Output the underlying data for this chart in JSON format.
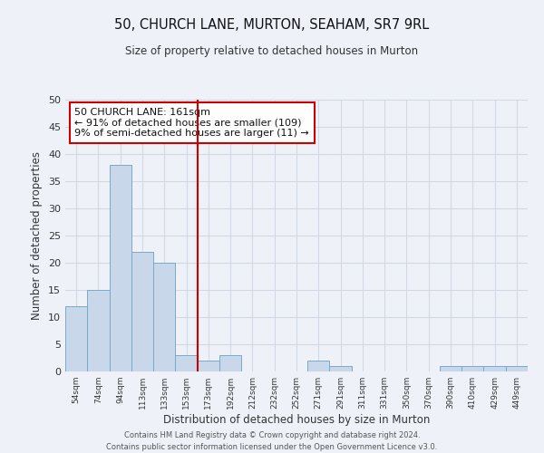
{
  "title": "50, CHURCH LANE, MURTON, SEAHAM, SR7 9RL",
  "subtitle": "Size of property relative to detached houses in Murton",
  "xlabel": "Distribution of detached houses by size in Murton",
  "ylabel": "Number of detached properties",
  "bar_color": "#c8d8ea",
  "bar_edge_color": "#7aaac8",
  "grid_color": "#d0d8e8",
  "background_color": "#eef2f8",
  "vline_color": "#cc0000",
  "vline_x": 5.5,
  "annotation_text": "50 CHURCH LANE: 161sqm\n← 91% of detached houses are smaller (109)\n9% of semi-detached houses are larger (11) →",
  "annotation_box_color": "#ffffff",
  "annotation_edge_color": "#cc0000",
  "ylim": [
    0,
    50
  ],
  "yticks": [
    0,
    5,
    10,
    15,
    20,
    25,
    30,
    35,
    40,
    45,
    50
  ],
  "categories": [
    "54sqm",
    "74sqm",
    "94sqm",
    "113sqm",
    "133sqm",
    "153sqm",
    "173sqm",
    "192sqm",
    "212sqm",
    "232sqm",
    "252sqm",
    "271sqm",
    "291sqm",
    "311sqm",
    "331sqm",
    "350sqm",
    "370sqm",
    "390sqm",
    "410sqm",
    "429sqm",
    "449sqm"
  ],
  "values": [
    12,
    15,
    38,
    22,
    20,
    3,
    2,
    3,
    0,
    0,
    0,
    2,
    1,
    0,
    0,
    0,
    0,
    1,
    1,
    1,
    1
  ],
  "footer_line1": "Contains HM Land Registry data © Crown copyright and database right 2024.",
  "footer_line2": "Contains public sector information licensed under the Open Government Licence v3.0."
}
